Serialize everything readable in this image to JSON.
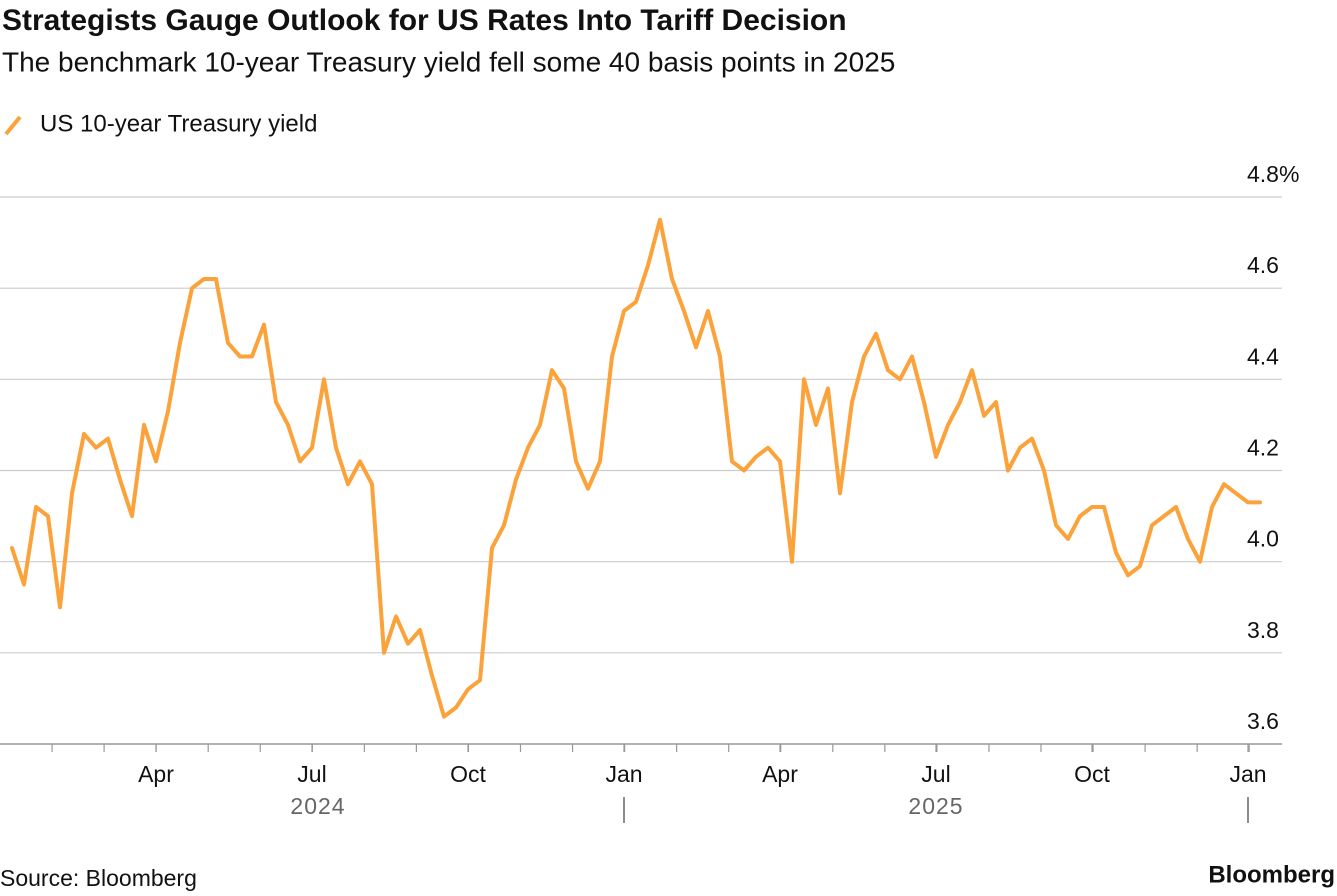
{
  "chart_data": {
    "type": "line",
    "title": "Strategists Gauge Outlook for US Rates Into Tariff Decision",
    "subtitle": "The benchmark 10-year Treasury yield fell some 40 basis points in 2025",
    "source": "Source: Bloomberg",
    "brand": "Bloomberg",
    "categories": [
      null,
      null,
      null,
      null,
      null,
      null,
      null,
      null,
      null,
      null,
      null,
      null,
      "Apr",
      null,
      null,
      null,
      null,
      null,
      null,
      null,
      null,
      null,
      null,
      null,
      null,
      "Jul",
      null,
      null,
      null,
      null,
      null,
      null,
      null,
      null,
      null,
      null,
      null,
      null,
      "Oct",
      null,
      null,
      null,
      null,
      null,
      null,
      null,
      null,
      null,
      null,
      null,
      null,
      "Jan",
      null,
      null,
      null,
      null,
      null,
      null,
      null,
      null,
      null,
      null,
      null,
      null,
      "Apr",
      null,
      null,
      null,
      null,
      null,
      null,
      null,
      null,
      null,
      null,
      null,
      null,
      "Jul",
      null,
      null,
      null,
      null,
      null,
      null,
      null,
      null,
      null,
      null,
      null,
      null,
      "Oct",
      null,
      null,
      null,
      null,
      null,
      null,
      null,
      null,
      null,
      null,
      null,
      null,
      "Jan",
      null
    ],
    "year_labels": [
      "2024",
      "2025"
    ],
    "series": [
      {
        "name": "US 10-year Treasury yield",
        "color": "#fba23a",
        "values": [
          4.03,
          3.95,
          4.12,
          4.1,
          3.9,
          4.15,
          4.28,
          4.25,
          4.27,
          4.18,
          4.1,
          4.3,
          4.22,
          4.33,
          4.48,
          4.6,
          4.62,
          4.62,
          4.48,
          4.45,
          4.45,
          4.52,
          4.35,
          4.3,
          4.22,
          4.25,
          4.4,
          4.25,
          4.17,
          4.22,
          4.17,
          3.8,
          3.88,
          3.82,
          3.85,
          3.75,
          3.66,
          3.68,
          3.72,
          3.74,
          4.03,
          4.08,
          4.18,
          4.25,
          4.3,
          4.42,
          4.38,
          4.22,
          4.16,
          4.22,
          4.45,
          4.55,
          4.57,
          4.65,
          4.75,
          4.62,
          4.55,
          4.47,
          4.55,
          4.45,
          4.22,
          4.2,
          4.23,
          4.25,
          4.22,
          4.0,
          4.4,
          4.3,
          4.38,
          4.15,
          4.35,
          4.45,
          4.5,
          4.42,
          4.4,
          4.45,
          4.35,
          4.23,
          4.3,
          4.35,
          4.42,
          4.32,
          4.35,
          4.2,
          4.25,
          4.27,
          4.2,
          4.08,
          4.05,
          4.1,
          4.12,
          4.12,
          4.02,
          3.97,
          3.99,
          4.08,
          4.1,
          4.12,
          4.05,
          4.0,
          4.12,
          4.17,
          4.15,
          4.13,
          4.13
        ]
      }
    ],
    "ylim": [
      3.6,
      4.8
    ],
    "yticks": [
      3.6,
      3.8,
      {
        "value": 4,
        "label": "4.0"
      },
      4.2,
      4.4,
      4.6,
      {
        "value": 4.8,
        "label": "4.8%"
      }
    ],
    "grid": true,
    "legend": "top-left"
  }
}
